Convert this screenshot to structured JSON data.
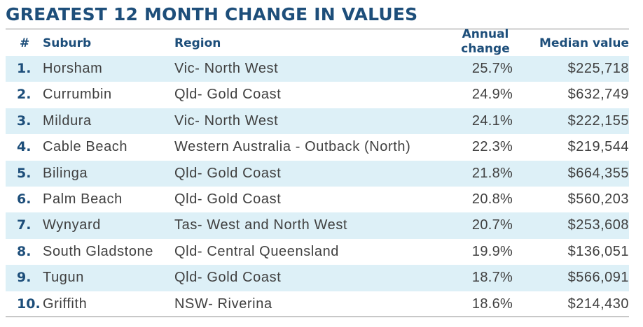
{
  "title": "GREATEST 12 MONTH CHANGE IN VALUES",
  "columns": {
    "num": "#",
    "suburb": "Suburb",
    "region": "Region",
    "change_line1": "Annual",
    "change_line2": "change",
    "median": "Median value"
  },
  "rows": [
    {
      "num": "1.",
      "suburb": "Horsham",
      "region": "Vic- North West",
      "change": "25.7%",
      "median": "$225,718"
    },
    {
      "num": "2.",
      "suburb": "Currumbin",
      "region": "Qld- Gold Coast",
      "change": "24.9%",
      "median": "$632,749"
    },
    {
      "num": "3.",
      "suburb": "Mildura",
      "region": "Vic- North West",
      "change": "24.1%",
      "median": "$222,155"
    },
    {
      "num": "4.",
      "suburb": "Cable Beach",
      "region": "Western Australia - Outback (North)",
      "change": "22.3%",
      "median": "$219,544"
    },
    {
      "num": "5.",
      "suburb": "Bilinga",
      "region": "Qld- Gold Coast",
      "change": "21.8%",
      "median": "$664,355"
    },
    {
      "num": "6.",
      "suburb": "Palm Beach",
      "region": "Qld- Gold Coast",
      "change": "20.8%",
      "median": "$560,203"
    },
    {
      "num": "7.",
      "suburb": "Wynyard",
      "region": "Tas- West and North West",
      "change": "20.7%",
      "median": "$253,608"
    },
    {
      "num": "8.",
      "suburb": "South Gladstone",
      "region": "Qld- Central Queensland",
      "change": "19.9%",
      "median": "$136,051"
    },
    {
      "num": "9.",
      "suburb": "Tugun",
      "region": "Qld- Gold Coast",
      "change": "18.7%",
      "median": "$566,091"
    },
    {
      "num": "10.",
      "suburb": "Griffith",
      "region": "NSW- Riverina",
      "change": "18.6%",
      "median": "$214,430"
    }
  ],
  "colors": {
    "heading": "#1d4e7a",
    "text": "#404040",
    "row_shade": "#ddf0f7"
  }
}
